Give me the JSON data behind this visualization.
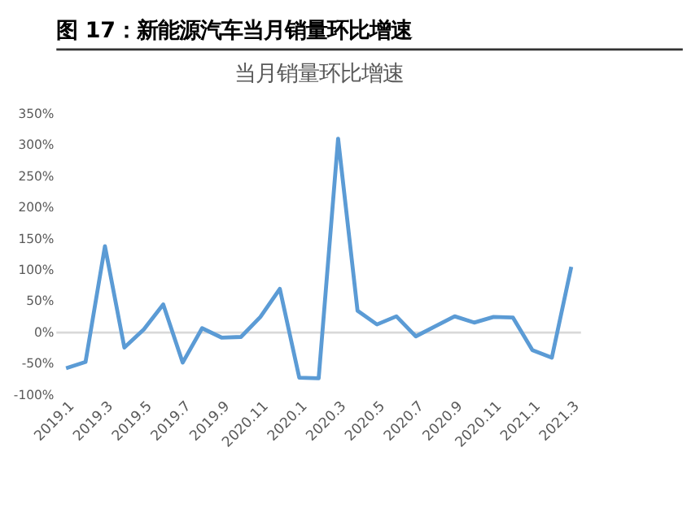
{
  "chart_data": {
    "type": "line",
    "title": "图 17：新能源汽车当月销量环比增速",
    "subtitle": "当月销量环比增速",
    "categories": [
      "2019.1",
      null,
      "2019.3",
      null,
      "2019.5",
      null,
      "2019.7",
      null,
      "2019.9",
      null,
      "2020.11",
      null,
      "2020.1",
      null,
      "2020.3",
      null,
      "2020.5",
      null,
      "2020.7",
      null,
      "2020.9",
      null,
      "2020.11",
      null,
      "2021.1",
      null,
      "2021.3"
    ],
    "series": [
      {
        "color": "#5b9bd5",
        "values": [
          -57,
          -47,
          138,
          -24,
          5,
          45,
          -48,
          7,
          -8,
          -7,
          25,
          70,
          -72,
          -73,
          310,
          35,
          13,
          26,
          -6,
          10,
          26,
          16,
          25,
          24,
          -28,
          -40,
          105
        ]
      }
    ],
    "ylim": [
      -100,
      350
    ],
    "yticks": [
      {
        "value": -100,
        "label": "-100%"
      },
      {
        "value": -50,
        "label": "-50%"
      },
      {
        "value": 0,
        "label": "0%"
      },
      {
        "value": 50,
        "label": "50%"
      },
      {
        "value": 100,
        "label": "100%"
      },
      {
        "value": 150,
        "label": "150%"
      },
      {
        "value": 200,
        "label": "200%"
      },
      {
        "value": 250,
        "label": "250%"
      },
      {
        "value": 300,
        "label": "300%"
      },
      {
        "value": 350,
        "label": "350%"
      }
    ],
    "ref_lines": [
      {
        "axis": "y",
        "value": 0,
        "color": "#d9d9d9"
      }
    ],
    "grid": false,
    "marker": "none",
    "line_style": "solid"
  }
}
